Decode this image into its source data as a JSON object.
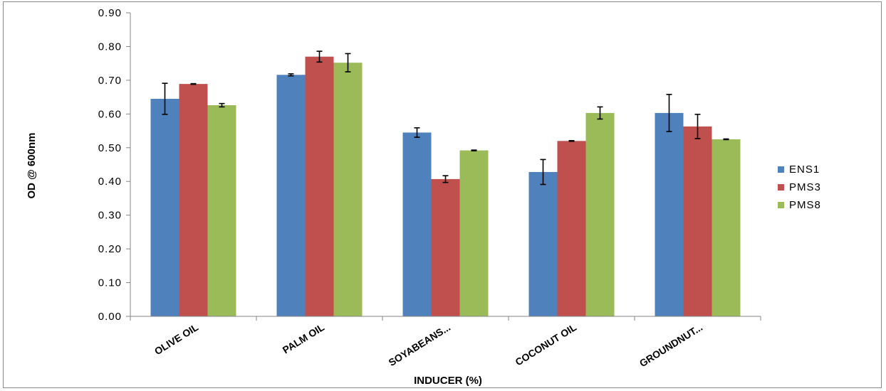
{
  "chart_data": {
    "type": "bar",
    "title": "",
    "xlabel": "INDUCER (%)",
    "ylabel": "OD @ 600nm",
    "ylim": [
      0,
      0.9
    ],
    "yticks": [
      "0.00",
      "0.10",
      "0.20",
      "0.30",
      "0.40",
      "0.50",
      "0.60",
      "0.70",
      "0.80",
      "0.90"
    ],
    "grid": false,
    "legend_position": "right",
    "categories": [
      "OLIVE OIL",
      "PALM OIL",
      "SOYABEANS...",
      "COCONUT OIL",
      "GROUNDNUT..."
    ],
    "series": [
      {
        "name": "ENS1",
        "color": "#4f81bd",
        "values": [
          0.645,
          0.716,
          0.545,
          0.428,
          0.603
        ],
        "errors": [
          0.046,
          0.003,
          0.014,
          0.037,
          0.055
        ]
      },
      {
        "name": "PMS3",
        "color": "#c0504d",
        "values": [
          0.689,
          0.77,
          0.407,
          0.52,
          0.563
        ],
        "errors": [
          0.001,
          0.016,
          0.01,
          0.001,
          0.036
        ]
      },
      {
        "name": "PMS8",
        "color": "#9bbb59",
        "values": [
          0.626,
          0.752,
          0.492,
          0.603,
          0.525
        ],
        "errors": [
          0.005,
          0.027,
          0.001,
          0.018,
          0.001
        ]
      }
    ]
  }
}
